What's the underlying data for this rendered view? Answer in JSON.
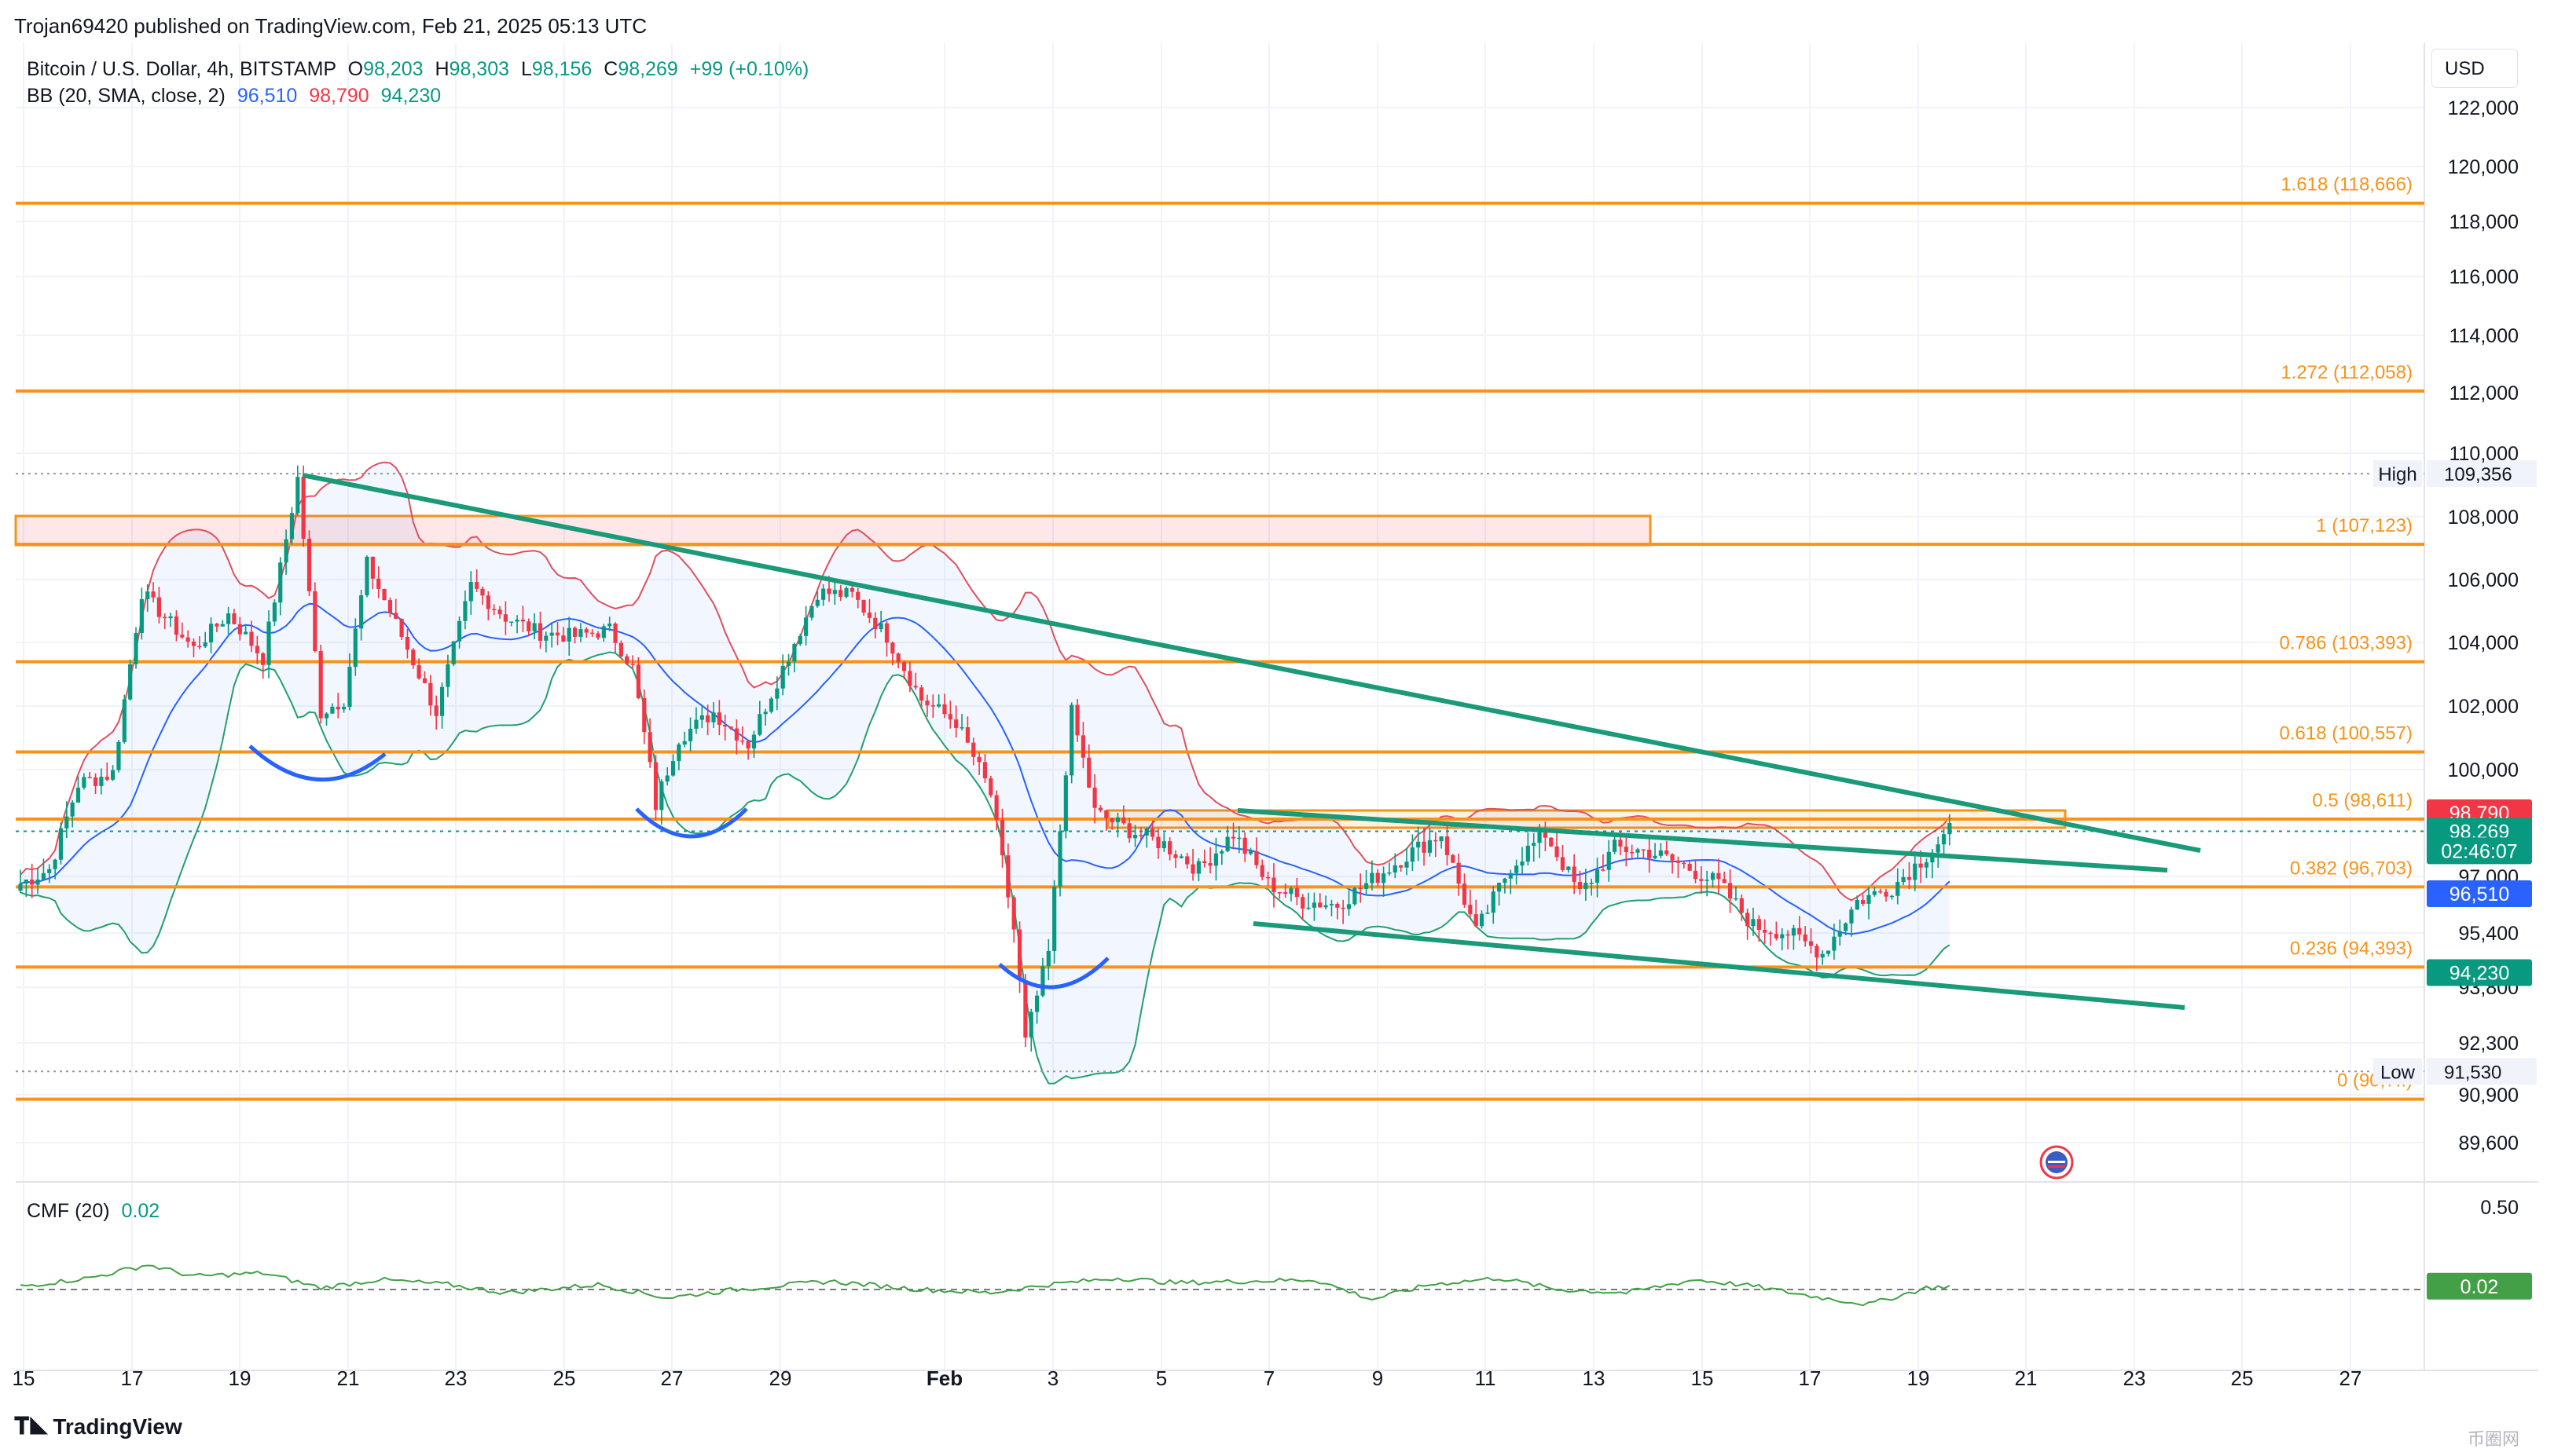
{
  "header": {
    "publish_text": "Trojan69420 published on TradingView.com, Feb 21, 2025 05:13 UTC",
    "currency": "USD"
  },
  "legend": {
    "symbol": "Bitcoin / U.S. Dollar, 4h, BITSTAMP",
    "o_label": "O",
    "o_value": "98,203",
    "h_label": "H",
    "h_value": "98,303",
    "l_label": "L",
    "l_value": "98,156",
    "c_label": "C",
    "c_value": "98,269",
    "change": "+99 (+0.10%)",
    "bb_label": "BB (20, SMA, close, 2)",
    "bb_basis": "96,510",
    "bb_upper": "98,790",
    "bb_lower": "94,230",
    "cmf_label": "CMF (20)",
    "cmf_value": "0.02"
  },
  "footer": {
    "logo": "TradingView",
    "watermark": "币圈网"
  },
  "chart_data": {
    "type": "candlestick",
    "x_ticks": [
      "15",
      "17",
      "19",
      "21",
      "23",
      "25",
      "27",
      "29",
      "Feb",
      "3",
      "5",
      "7",
      "9",
      "11",
      "13",
      "15",
      "17",
      "19",
      "21",
      "23",
      "25",
      "27"
    ],
    "price_ticks": [
      "122,000",
      "120,000",
      "118,000",
      "116,000",
      "114,000",
      "112,000",
      "110,000",
      "108,000",
      "106,000",
      "104,000",
      "102,000",
      "100,000",
      "97,000",
      "95,400",
      "93,800",
      "92,300",
      "90,900",
      "89,600"
    ],
    "price_tick_values": [
      122000,
      120000,
      118000,
      116000,
      114000,
      112000,
      110000,
      108000,
      106000,
      104000,
      102000,
      100000,
      97000,
      95400,
      93800,
      92300,
      90900,
      89600
    ],
    "cmf_ticks": [
      "0.50"
    ],
    "cmf_tick_values": [
      0.5
    ],
    "fib_levels": [
      {
        "label": "1.618 (118,666)",
        "price": 118666
      },
      {
        "label": "1.272 (112,058)",
        "price": 112058
      },
      {
        "label": "1 (107,123)",
        "price": 107123
      },
      {
        "label": "0.786 (103,393)",
        "price": 103393
      },
      {
        "label": "0.618 (100,557)",
        "price": 100557
      },
      {
        "label": "0.5 (98,611)",
        "price": 98611
      },
      {
        "label": "0.382 (96,703)",
        "price": 96703
      },
      {
        "label": "0.236 (94,393)",
        "price": 94393
      },
      {
        "label": "0 (90,7..)",
        "price": 90779
      }
    ],
    "price_badges": [
      {
        "text": "98,790",
        "price": 98790,
        "color": "#f23645"
      },
      {
        "text": "98,269",
        "price": 98269,
        "color": "#089981"
      },
      {
        "text": "02:46:07",
        "price": 97720,
        "color": "#089981"
      },
      {
        "text": "96,510",
        "price": 96510,
        "color": "#2962ff"
      },
      {
        "text": "94,230",
        "price": 94230,
        "color": "#089981"
      },
      {
        "text": "0.02",
        "cmf": 0.02,
        "color": "#43a047"
      }
    ],
    "high": {
      "label": "High",
      "value": "109,356",
      "price": 109356
    },
    "low": {
      "label": "Low",
      "value": "91,530",
      "price": 91530
    },
    "colors": {
      "up": "#089981",
      "down": "#f23645",
      "fib": "#f7931a",
      "trend": "#1a9a78",
      "bb_basis": "#2962ff",
      "bb_upper": "#e0505c",
      "bb_lower": "#22a06b",
      "arc": "#2962ff",
      "cmf": "#43a047"
    }
  }
}
